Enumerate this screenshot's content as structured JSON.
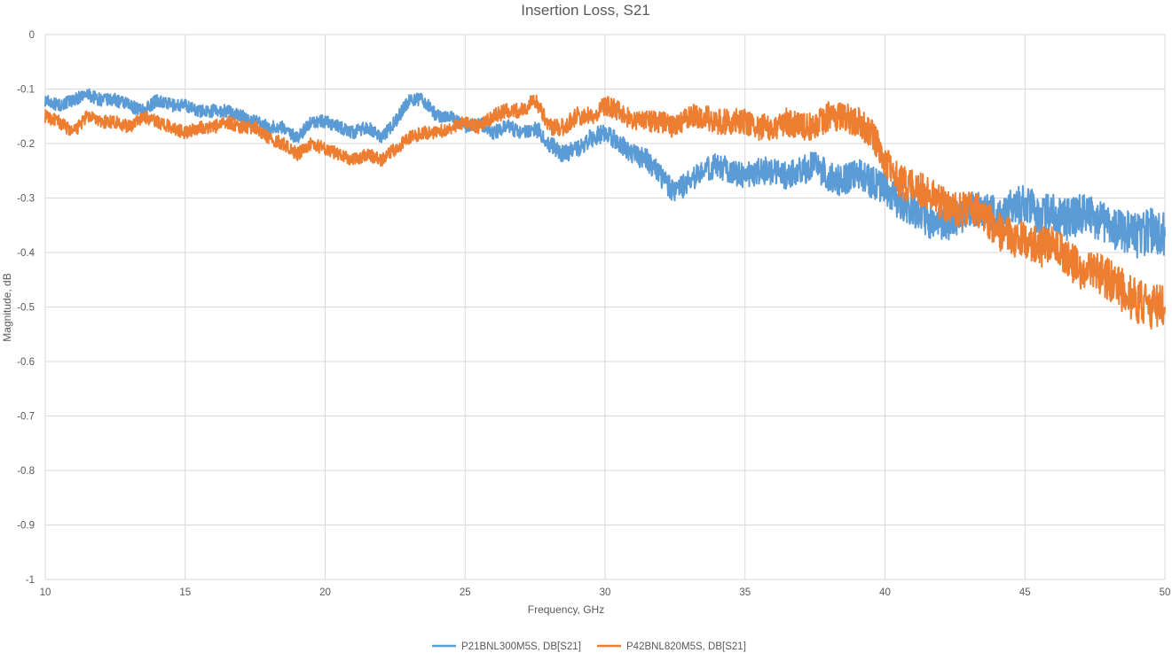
{
  "chart_data": {
    "type": "line",
    "title": "Insertion Loss, S21",
    "xlabel": "Frequency, GHz",
    "ylabel": "Magnitude, dB",
    "xlim": [
      10,
      50
    ],
    "ylim": [
      -1,
      0
    ],
    "x_ticks": [
      10,
      15,
      20,
      25,
      30,
      35,
      40,
      45,
      50
    ],
    "y_ticks": [
      0,
      -0.1,
      -0.2,
      -0.3,
      -0.4,
      -0.5,
      -0.6,
      -0.7,
      -0.8,
      -0.9,
      -1
    ],
    "grid": true,
    "legend_position": "bottom",
    "series": [
      {
        "name": "P21BNL300M5S, DB[S21]",
        "color": "#5B9BD5",
        "x": [
          10,
          10.5,
          11,
          11.5,
          12,
          12.5,
          13,
          13.5,
          14,
          14.5,
          15,
          15.5,
          16,
          16.5,
          17,
          17.5,
          18,
          18.5,
          19,
          19.5,
          20,
          20.5,
          21,
          21.5,
          22,
          22.5,
          23,
          23.5,
          24,
          24.5,
          25,
          25.5,
          26,
          26.5,
          27,
          27.5,
          28,
          28.5,
          29,
          29.5,
          30,
          30.5,
          31,
          31.5,
          32,
          32.5,
          33,
          33.5,
          34,
          34.5,
          35,
          35.5,
          36,
          36.5,
          37,
          37.5,
          38,
          38.5,
          39,
          39.5,
          40,
          40.5,
          41,
          41.5,
          42,
          42.5,
          43,
          43.5,
          44,
          44.5,
          45,
          45.5,
          46,
          46.5,
          47,
          47.5,
          48,
          48.5,
          49,
          49.5,
          50
        ],
        "values": [
          -0.12,
          -0.13,
          -0.12,
          -0.11,
          -0.12,
          -0.12,
          -0.13,
          -0.14,
          -0.12,
          -0.13,
          -0.13,
          -0.14,
          -0.14,
          -0.14,
          -0.15,
          -0.16,
          -0.17,
          -0.17,
          -0.19,
          -0.16,
          -0.16,
          -0.17,
          -0.18,
          -0.17,
          -0.19,
          -0.16,
          -0.12,
          -0.12,
          -0.15,
          -0.15,
          -0.17,
          -0.16,
          -0.18,
          -0.17,
          -0.18,
          -0.17,
          -0.2,
          -0.22,
          -0.21,
          -0.19,
          -0.18,
          -0.2,
          -0.22,
          -0.23,
          -0.26,
          -0.29,
          -0.27,
          -0.25,
          -0.24,
          -0.25,
          -0.26,
          -0.25,
          -0.25,
          -0.26,
          -0.25,
          -0.24,
          -0.26,
          -0.27,
          -0.25,
          -0.27,
          -0.28,
          -0.31,
          -0.32,
          -0.34,
          -0.35,
          -0.34,
          -0.32,
          -0.32,
          -0.33,
          -0.32,
          -0.31,
          -0.33,
          -0.33,
          -0.34,
          -0.33,
          -0.34,
          -0.35,
          -0.36,
          -0.37,
          -0.36,
          -0.37
        ]
      },
      {
        "name": "P42BNL820M5S, DB[S21]",
        "color": "#ED7D31",
        "x": [
          10,
          10.5,
          11,
          11.5,
          12,
          12.5,
          13,
          13.5,
          14,
          14.5,
          15,
          15.5,
          16,
          16.5,
          17,
          17.5,
          18,
          18.5,
          19,
          19.5,
          20,
          20.5,
          21,
          21.5,
          22,
          22.5,
          23,
          23.5,
          24,
          24.5,
          25,
          25.5,
          26,
          26.5,
          27,
          27.5,
          28,
          28.5,
          29,
          29.5,
          30,
          30.5,
          31,
          31.5,
          32,
          32.5,
          33,
          33.5,
          34,
          34.5,
          35,
          35.5,
          36,
          36.5,
          37,
          37.5,
          38,
          38.5,
          39,
          39.5,
          40,
          40.5,
          41,
          41.5,
          42,
          42.5,
          43,
          43.5,
          44,
          44.5,
          45,
          45.5,
          46,
          46.5,
          47,
          47.5,
          48,
          48.5,
          49,
          49.5,
          50
        ],
        "values": [
          -0.15,
          -0.16,
          -0.18,
          -0.15,
          -0.16,
          -0.16,
          -0.17,
          -0.15,
          -0.16,
          -0.17,
          -0.18,
          -0.17,
          -0.17,
          -0.16,
          -0.17,
          -0.17,
          -0.19,
          -0.2,
          -0.22,
          -0.2,
          -0.21,
          -0.22,
          -0.23,
          -0.22,
          -0.23,
          -0.21,
          -0.19,
          -0.18,
          -0.18,
          -0.17,
          -0.16,
          -0.17,
          -0.15,
          -0.14,
          -0.14,
          -0.12,
          -0.17,
          -0.17,
          -0.15,
          -0.15,
          -0.13,
          -0.14,
          -0.16,
          -0.16,
          -0.16,
          -0.17,
          -0.15,
          -0.15,
          -0.16,
          -0.16,
          -0.16,
          -0.17,
          -0.17,
          -0.16,
          -0.17,
          -0.17,
          -0.15,
          -0.15,
          -0.16,
          -0.18,
          -0.23,
          -0.27,
          -0.28,
          -0.29,
          -0.31,
          -0.32,
          -0.32,
          -0.33,
          -0.36,
          -0.37,
          -0.38,
          -0.39,
          -0.39,
          -0.41,
          -0.43,
          -0.43,
          -0.45,
          -0.47,
          -0.49,
          -0.5,
          -0.5
        ]
      }
    ]
  }
}
